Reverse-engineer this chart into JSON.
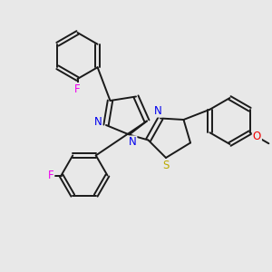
{
  "bg_color": "#e8e8e8",
  "bond_color": "#1a1a1a",
  "bond_width": 1.4,
  "atom_colors": {
    "N": "#0000ee",
    "S": "#bbaa00",
    "F": "#ee00ee",
    "O": "#ee0000",
    "C": "#1a1a1a"
  },
  "font_size": 8.5
}
